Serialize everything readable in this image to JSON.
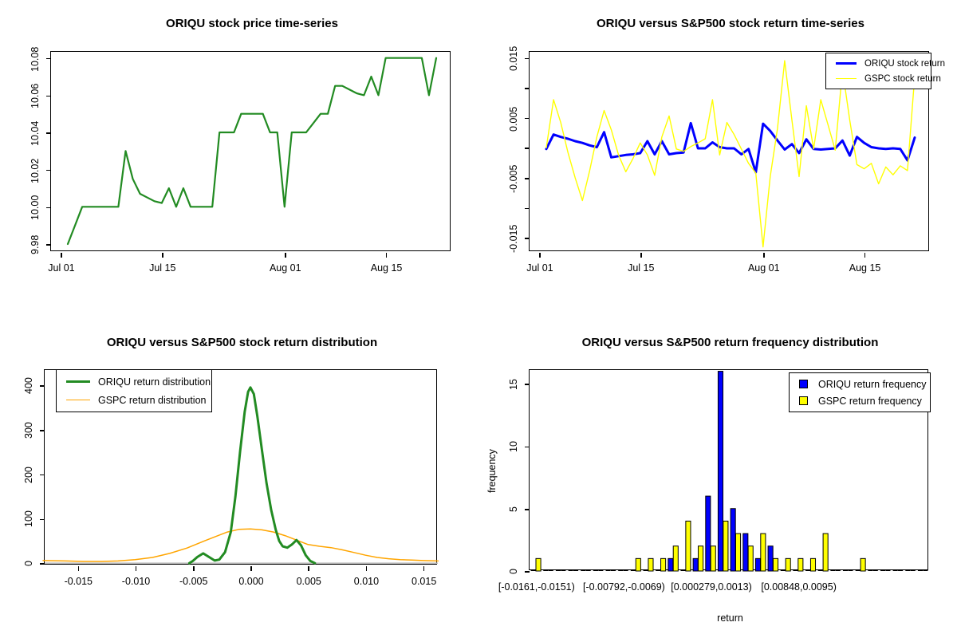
{
  "page_background": "#FFFFFF",
  "chart_data": [
    {
      "id": "price-timeseries",
      "type": "line",
      "title": "ORIQU stock price time-series",
      "xlabel": "",
      "ylabel": "",
      "x_unit": "calendar day index (Jul 01 = 1)",
      "xlim": [
        -0.32,
        55.1
      ],
      "ylim": [
        9.9757,
        10.0833
      ],
      "grid": false,
      "x_ticks": [
        {
          "v": 1,
          "label": "Jul 01"
        },
        {
          "v": 15,
          "label": "Jul 15"
        },
        {
          "v": 32,
          "label": "Aug 01"
        },
        {
          "v": 46,
          "label": "Aug 15"
        }
      ],
      "y_ticks": [
        {
          "v": 9.98,
          "label": "9.98"
        },
        {
          "v": 10.0,
          "label": "10.00"
        },
        {
          "v": 10.02,
          "label": "10.02"
        },
        {
          "v": 10.04,
          "label": "10.04"
        },
        {
          "v": 10.06,
          "label": "10.06"
        },
        {
          "v": 10.08,
          "label": "10.08"
        }
      ],
      "series": [
        {
          "name": "ORIQU stock price",
          "color": "#228B22",
          "line_width": 2.2,
          "x_start": 2,
          "x_step": 1,
          "y": [
            9.98,
            9.99,
            10.0,
            10.0,
            10.0,
            10.0,
            10.0,
            10.0,
            10.03,
            10.015,
            10.007,
            10.005,
            10.003,
            10.002,
            10.01,
            10.0,
            10.01,
            10.0,
            10.0,
            10.0,
            10.0,
            10.04,
            10.04,
            10.04,
            10.05,
            10.05,
            10.05,
            10.05,
            10.04,
            10.04,
            10.0,
            10.04,
            10.04,
            10.04,
            10.045,
            10.05,
            10.05,
            10.065,
            10.065,
            10.063,
            10.061,
            10.06,
            10.07,
            10.06,
            10.08,
            10.08,
            10.08,
            10.08,
            10.08,
            10.08,
            10.06,
            10.08
          ]
        }
      ]
    },
    {
      "id": "return-timeseries",
      "type": "line",
      "title": "ORIQU versus S&P500 stock return time-series",
      "xlabel": "",
      "ylabel": "",
      "x_unit": "calendar day index (Jul 01 = 1)",
      "xlim": [
        -0.32,
        55.1
      ],
      "ylim": [
        -0.01736,
        0.01597
      ],
      "grid": false,
      "x_ticks": [
        {
          "v": 1,
          "label": "Jul 01"
        },
        {
          "v": 15,
          "label": "Jul 15"
        },
        {
          "v": 32,
          "label": "Aug 01"
        },
        {
          "v": 46,
          "label": "Aug 15"
        }
      ],
      "y_ticks": [
        {
          "v": -0.015,
          "label": "-0.015"
        },
        {
          "v": -0.01,
          "label": ""
        },
        {
          "v": -0.005,
          "label": "-0.005"
        },
        {
          "v": 0.0,
          "label": ""
        },
        {
          "v": 0.005,
          "label": "0.005"
        },
        {
          "v": 0.01,
          "label": ""
        },
        {
          "v": 0.015,
          "label": "0.015"
        }
      ],
      "legend": {
        "position": "topright",
        "entries": [
          {
            "label": "ORIQU stock return",
            "color": "#0000FF",
            "swatch": "line",
            "swatch_width": 3.2
          },
          {
            "label": "GSPC stock return",
            "color": "#FFFF00",
            "swatch": "line",
            "swatch_width": 1.4
          }
        ]
      },
      "series": [
        {
          "name": "ORIQU stock return",
          "color": "#0000FF",
          "line_width": 3,
          "x_start": 2,
          "x_step": 1,
          "y": [
            -0.0002,
            0.0022,
            0.0018,
            0.0015,
            0.0011,
            0.0008,
            0.0004,
            0.0001,
            0.0026,
            -0.0016,
            -0.0014,
            -0.0012,
            -0.0011,
            -0.0009,
            0.0011,
            -0.0011,
            0.0011,
            -0.0011,
            -0.0009,
            -0.0008,
            0.0041,
            -0.0001,
            -0.0001,
            0.0009,
            0.0001,
            -0.0001,
            -0.0001,
            -0.0011,
            -0.0002,
            -0.0041,
            0.004,
            0.0028,
            0.0012,
            -0.0003,
            0.0006,
            -0.0009,
            0.0014,
            -0.0002,
            -0.0003,
            -0.0002,
            -0.0001,
            0.0012,
            -0.0013,
            0.0018,
            0.0008,
            0.0001,
            -0.0001,
            -0.0002,
            -0.0001,
            -0.0002,
            -0.0021,
            0.0017
          ]
        },
        {
          "name": "GSPC stock return",
          "color": "#FFFF00",
          "line_width": 1.4,
          "x_start": 2,
          "x_step": 1,
          "y": [
            0.0,
            0.008,
            0.0042,
            -0.0008,
            -0.005,
            -0.0088,
            -0.0038,
            0.0018,
            0.0062,
            0.003,
            -0.0012,
            -0.004,
            -0.0018,
            0.0008,
            -0.0012,
            -0.0046,
            0.0018,
            0.0053,
            -0.0002,
            -0.0006,
            0.0002,
            0.0008,
            0.0015,
            0.008,
            -0.0012,
            0.0042,
            0.0022,
            -0.0002,
            -0.0026,
            -0.0042,
            -0.0165,
            -0.0048,
            0.0032,
            0.0145,
            0.0046,
            -0.0048,
            0.007,
            -0.0002,
            0.008,
            0.0038,
            -0.0004,
            0.013,
            0.0046,
            -0.0028,
            -0.0035,
            -0.0026,
            -0.006,
            -0.0032,
            -0.0045,
            -0.003,
            -0.0038,
            0.012
          ]
        }
      ]
    },
    {
      "id": "return-density",
      "type": "line",
      "title": "ORIQU versus S&P500 stock return distribution",
      "xlabel": "",
      "ylabel": "",
      "xlim": [
        -0.01786,
        0.01627
      ],
      "ylim": [
        -5,
        434
      ],
      "grid": false,
      "zero_line": {
        "y": 0,
        "color": "#BEBEBE",
        "width": 1.6
      },
      "x_ticks": [
        {
          "v": -0.015,
          "label": "-0.015"
        },
        {
          "v": -0.01,
          "label": "-0.010"
        },
        {
          "v": -0.005,
          "label": "-0.005"
        },
        {
          "v": 0.0,
          "label": "0.000"
        },
        {
          "v": 0.005,
          "label": "0.005"
        },
        {
          "v": 0.01,
          "label": "0.010"
        },
        {
          "v": 0.015,
          "label": "0.015"
        }
      ],
      "y_ticks": [
        {
          "v": 0,
          "label": "0"
        },
        {
          "v": 100,
          "label": "100"
        },
        {
          "v": 200,
          "label": "200"
        },
        {
          "v": 300,
          "label": "300"
        },
        {
          "v": 400,
          "label": "400"
        }
      ],
      "legend": {
        "position": "topleft",
        "entries": [
          {
            "label": "ORIQU return distribution",
            "color": "#228B22",
            "swatch": "line",
            "swatch_width": 3.2
          },
          {
            "label": "GSPC return distribution",
            "color": "#FFA500",
            "swatch": "line",
            "swatch_width": 1.4
          }
        ]
      },
      "series": [
        {
          "name": "GSPC return distribution",
          "color": "#FFA500",
          "line_width": 1.5,
          "x": [
            -0.018,
            -0.016,
            -0.0145,
            -0.013,
            -0.0115,
            -0.01,
            -0.0085,
            -0.007,
            -0.0055,
            -0.004,
            -0.003,
            -0.002,
            -0.001,
            0.0,
            0.001,
            0.002,
            0.003,
            0.004,
            0.005,
            0.006,
            0.007,
            0.008,
            0.009,
            0.01,
            0.011,
            0.012,
            0.013,
            0.014,
            0.015,
            0.0163
          ],
          "y": [
            6,
            5,
            4,
            4,
            5,
            8,
            13,
            22,
            34,
            50,
            60,
            70,
            76,
            77,
            75,
            70,
            62,
            52,
            42,
            38,
            35,
            30,
            24,
            18,
            13,
            10,
            8,
            7,
            6,
            5
          ]
        },
        {
          "name": "ORIQU return distribution",
          "color": "#228B22",
          "line_width": 3,
          "x": [
            -0.0053,
            -0.005,
            -0.0046,
            -0.0041,
            -0.0036,
            -0.0031,
            -0.0027,
            -0.0022,
            -0.0017,
            -0.0013,
            -0.0009,
            -0.0005,
            -0.0002,
            0.0,
            0.0003,
            0.0006,
            0.001,
            0.0014,
            0.0018,
            0.0022,
            0.0025,
            0.0028,
            0.0032,
            0.0036,
            0.004,
            0.0044,
            0.0048,
            0.0052,
            0.0056
          ],
          "y": [
            0,
            5,
            14,
            22,
            14,
            6,
            8,
            25,
            70,
            150,
            250,
            340,
            385,
            395,
            380,
            330,
            255,
            180,
            120,
            75,
            50,
            38,
            35,
            42,
            52,
            40,
            18,
            5,
            0
          ]
        }
      ]
    },
    {
      "id": "return-frequency-histogram",
      "type": "bar",
      "title": "ORIQU versus S&P500 return frequency distribution",
      "xlabel": "return",
      "ylabel": "frequency",
      "ylim": [
        0,
        16.1
      ],
      "bins": 32,
      "grid": false,
      "bin_tick_labels": [
        {
          "bin": 0,
          "label": "[-0.0161,-0.0151)"
        },
        {
          "bin": 7,
          "label": "[-0.00792,-0.0069)"
        },
        {
          "bin": 14,
          "label": "[0.000279,0.0013)"
        },
        {
          "bin": 21,
          "label": "[0.00848,0.0095)"
        }
      ],
      "y_ticks": [
        {
          "v": 0,
          "label": "0"
        },
        {
          "v": 5,
          "label": "5"
        },
        {
          "v": 10,
          "label": "10"
        },
        {
          "v": 15,
          "label": "15"
        }
      ],
      "legend": {
        "position": "topright",
        "entries": [
          {
            "label": "ORIQU return frequency",
            "color": "#0000FF",
            "swatch": "square"
          },
          {
            "label": "GSPC return frequency",
            "color": "#FFFF00",
            "swatch": "square"
          }
        ]
      },
      "series": [
        {
          "name": "ORIQU return frequency",
          "color": "#0000FF",
          "values": [
            0,
            0,
            0,
            0,
            0,
            0,
            0,
            0,
            0,
            0,
            0,
            1,
            0,
            1,
            6,
            16,
            5,
            3,
            1,
            2,
            0,
            0,
            0,
            0,
            0,
            0,
            0,
            0,
            0,
            0,
            0,
            0
          ]
        },
        {
          "name": "GSPC return frequency",
          "color": "#FFFF00",
          "values": [
            1,
            0,
            0,
            0,
            0,
            0,
            0,
            0,
            1,
            1,
            1,
            2,
            4,
            2,
            2,
            4,
            3,
            2,
            3,
            1,
            1,
            1,
            1,
            3,
            0,
            0,
            1,
            0,
            0,
            0,
            0,
            0
          ]
        }
      ]
    }
  ]
}
